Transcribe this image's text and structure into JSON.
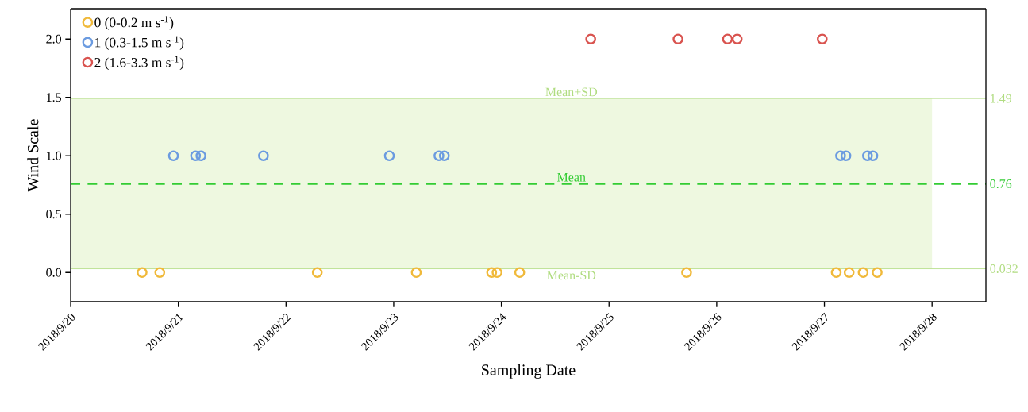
{
  "chart_data": {
    "type": "scatter",
    "xlabel": "Sampling Date",
    "ylabel": "Wind Scale",
    "xlim": [
      "2018-09-20",
      "2018-09-28T12:00"
    ],
    "xticks": [
      {
        "value": "2018-09-20",
        "label": "2018/9/20"
      },
      {
        "value": "2018-09-21",
        "label": "2018/9/21"
      },
      {
        "value": "2018-09-22",
        "label": "2018/9/22"
      },
      {
        "value": "2018-09-23",
        "label": "2018/9/23"
      },
      {
        "value": "2018-09-24",
        "label": "2018/9/24"
      },
      {
        "value": "2018-09-25",
        "label": "2018/9/25"
      },
      {
        "value": "2018-09-26",
        "label": "2018/9/26"
      },
      {
        "value": "2018-09-27",
        "label": "2018/9/27"
      },
      {
        "value": "2018-09-28",
        "label": "2018/9/28"
      }
    ],
    "ylim": [
      -0.25,
      2.26
    ],
    "yticks": [
      {
        "value": 0,
        "label": "0.0"
      },
      {
        "value": 0.5,
        "label": "0.5"
      },
      {
        "value": 1,
        "label": "1.0"
      },
      {
        "value": 1.5,
        "label": "1.5"
      },
      {
        "value": 2,
        "label": "2.0"
      }
    ],
    "y2lim": [
      -0.25,
      2.26
    ],
    "y2ticks": [
      0.032,
      0.76,
      1.49
    ],
    "marker": "circle",
    "legend": "top left",
    "grid": false,
    "series": [
      {
        "name": "0 (0-0.2 m s$^{-1}$)",
        "color": "#f0b93a",
        "x": [
          "2018-09-20T15:55",
          "2018-09-20T19:52",
          "2018-09-22T06:58",
          "2018-09-23T05:02",
          "2018-09-23T21:50",
          "2018-09-23T23:02",
          "2018-09-24T04:05",
          "2018-09-25T17:17",
          "2018-09-27T02:38",
          "2018-09-27T05:31",
          "2018-09-27T08:38",
          "2018-09-27T11:46"
        ],
        "values": [
          0,
          0,
          0,
          0,
          0,
          0,
          0,
          0,
          0,
          0,
          0,
          0
        ]
      },
      {
        "name": "1 (0.3-1.5 m s$^{-1}$)",
        "color": "#6b9be0",
        "x": [
          "2018-09-20T22:55",
          "2018-09-21T03:50",
          "2018-09-21T05:02",
          "2018-09-21T18:58",
          "2018-09-22T23:02",
          "2018-09-23T10:05",
          "2018-09-23T11:17",
          "2018-09-27T03:36",
          "2018-09-27T04:48",
          "2018-09-27T09:36",
          "2018-09-27T10:48"
        ],
        "values": [
          1,
          1,
          1,
          1,
          1,
          1,
          1,
          1,
          1,
          1,
          1
        ]
      },
      {
        "name": "2 (1.6-3.3 m s$^{-1}$)",
        "color": "#d9534f",
        "x": [
          "2018-09-24T19:55",
          "2018-09-25T15:22",
          "2018-09-26T02:24",
          "2018-09-26T04:34",
          "2018-09-26T23:31"
        ],
        "values": [
          2,
          2,
          2,
          2,
          2
        ]
      }
    ],
    "ref_lines": [
      {
        "axis": "y",
        "value": 1.49,
        "label": "Mean+SD",
        "color": "#b0dc80",
        "line_style": "solid"
      },
      {
        "axis": "y",
        "value": 0.76,
        "label": "Mean",
        "color": "#33cc33",
        "line_style": "dashed"
      },
      {
        "axis": "y",
        "value": 0.032,
        "label": "Mean-SD",
        "color": "#b0dc80",
        "line_style": "solid"
      }
    ],
    "bands": [
      {
        "axis": "y",
        "from": 0.032,
        "to": 1.49,
        "color": "#eef8e0"
      }
    ]
  }
}
